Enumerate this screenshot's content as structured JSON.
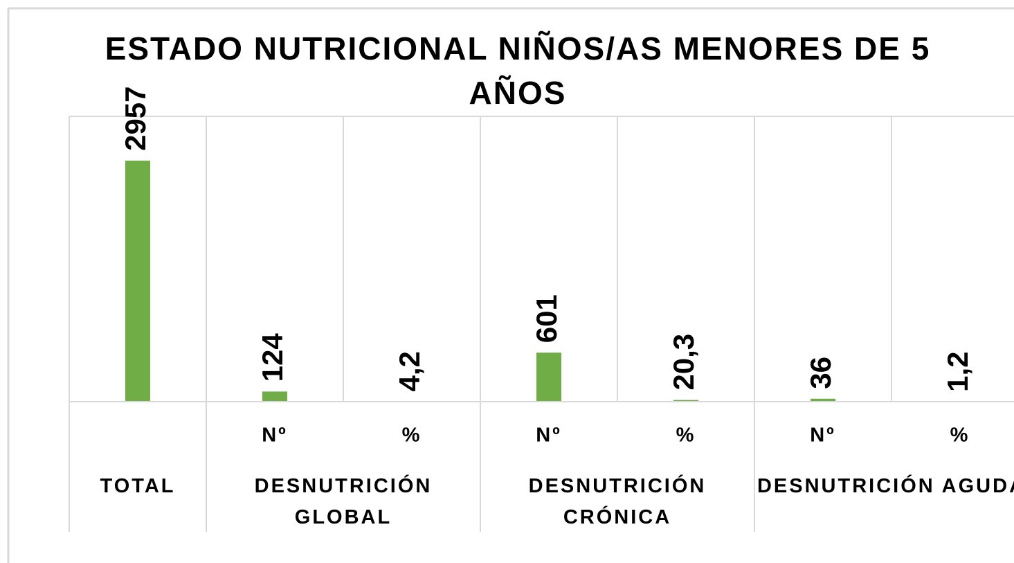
{
  "chart_data": {
    "type": "bar",
    "title": "ESTADO NUTRICIONAL NIÑOS/AS MENORES DE 5 AÑOS",
    "categories": [
      null,
      "Nº",
      "%",
      "Nº",
      "%",
      "Nº",
      "%"
    ],
    "groups": [
      {
        "label": "TOTAL",
        "size": 1
      },
      {
        "label": "DESNUTRICIÓN GLOBAL",
        "size": 2
      },
      {
        "label": "DESNUTRICIÓN CRÓNICA",
        "size": 2
      },
      {
        "label": "DESNUTRICIÓN AGUDA",
        "size": 2
      }
    ],
    "values": [
      2957,
      124,
      4.2,
      601,
      20.3,
      36,
      1.2
    ],
    "value_labels": [
      "2957",
      "124",
      "4,2",
      "601",
      "20,3",
      "36",
      "1,2"
    ],
    "color": "#70ad47",
    "ylim": [
      0,
      3500
    ]
  }
}
